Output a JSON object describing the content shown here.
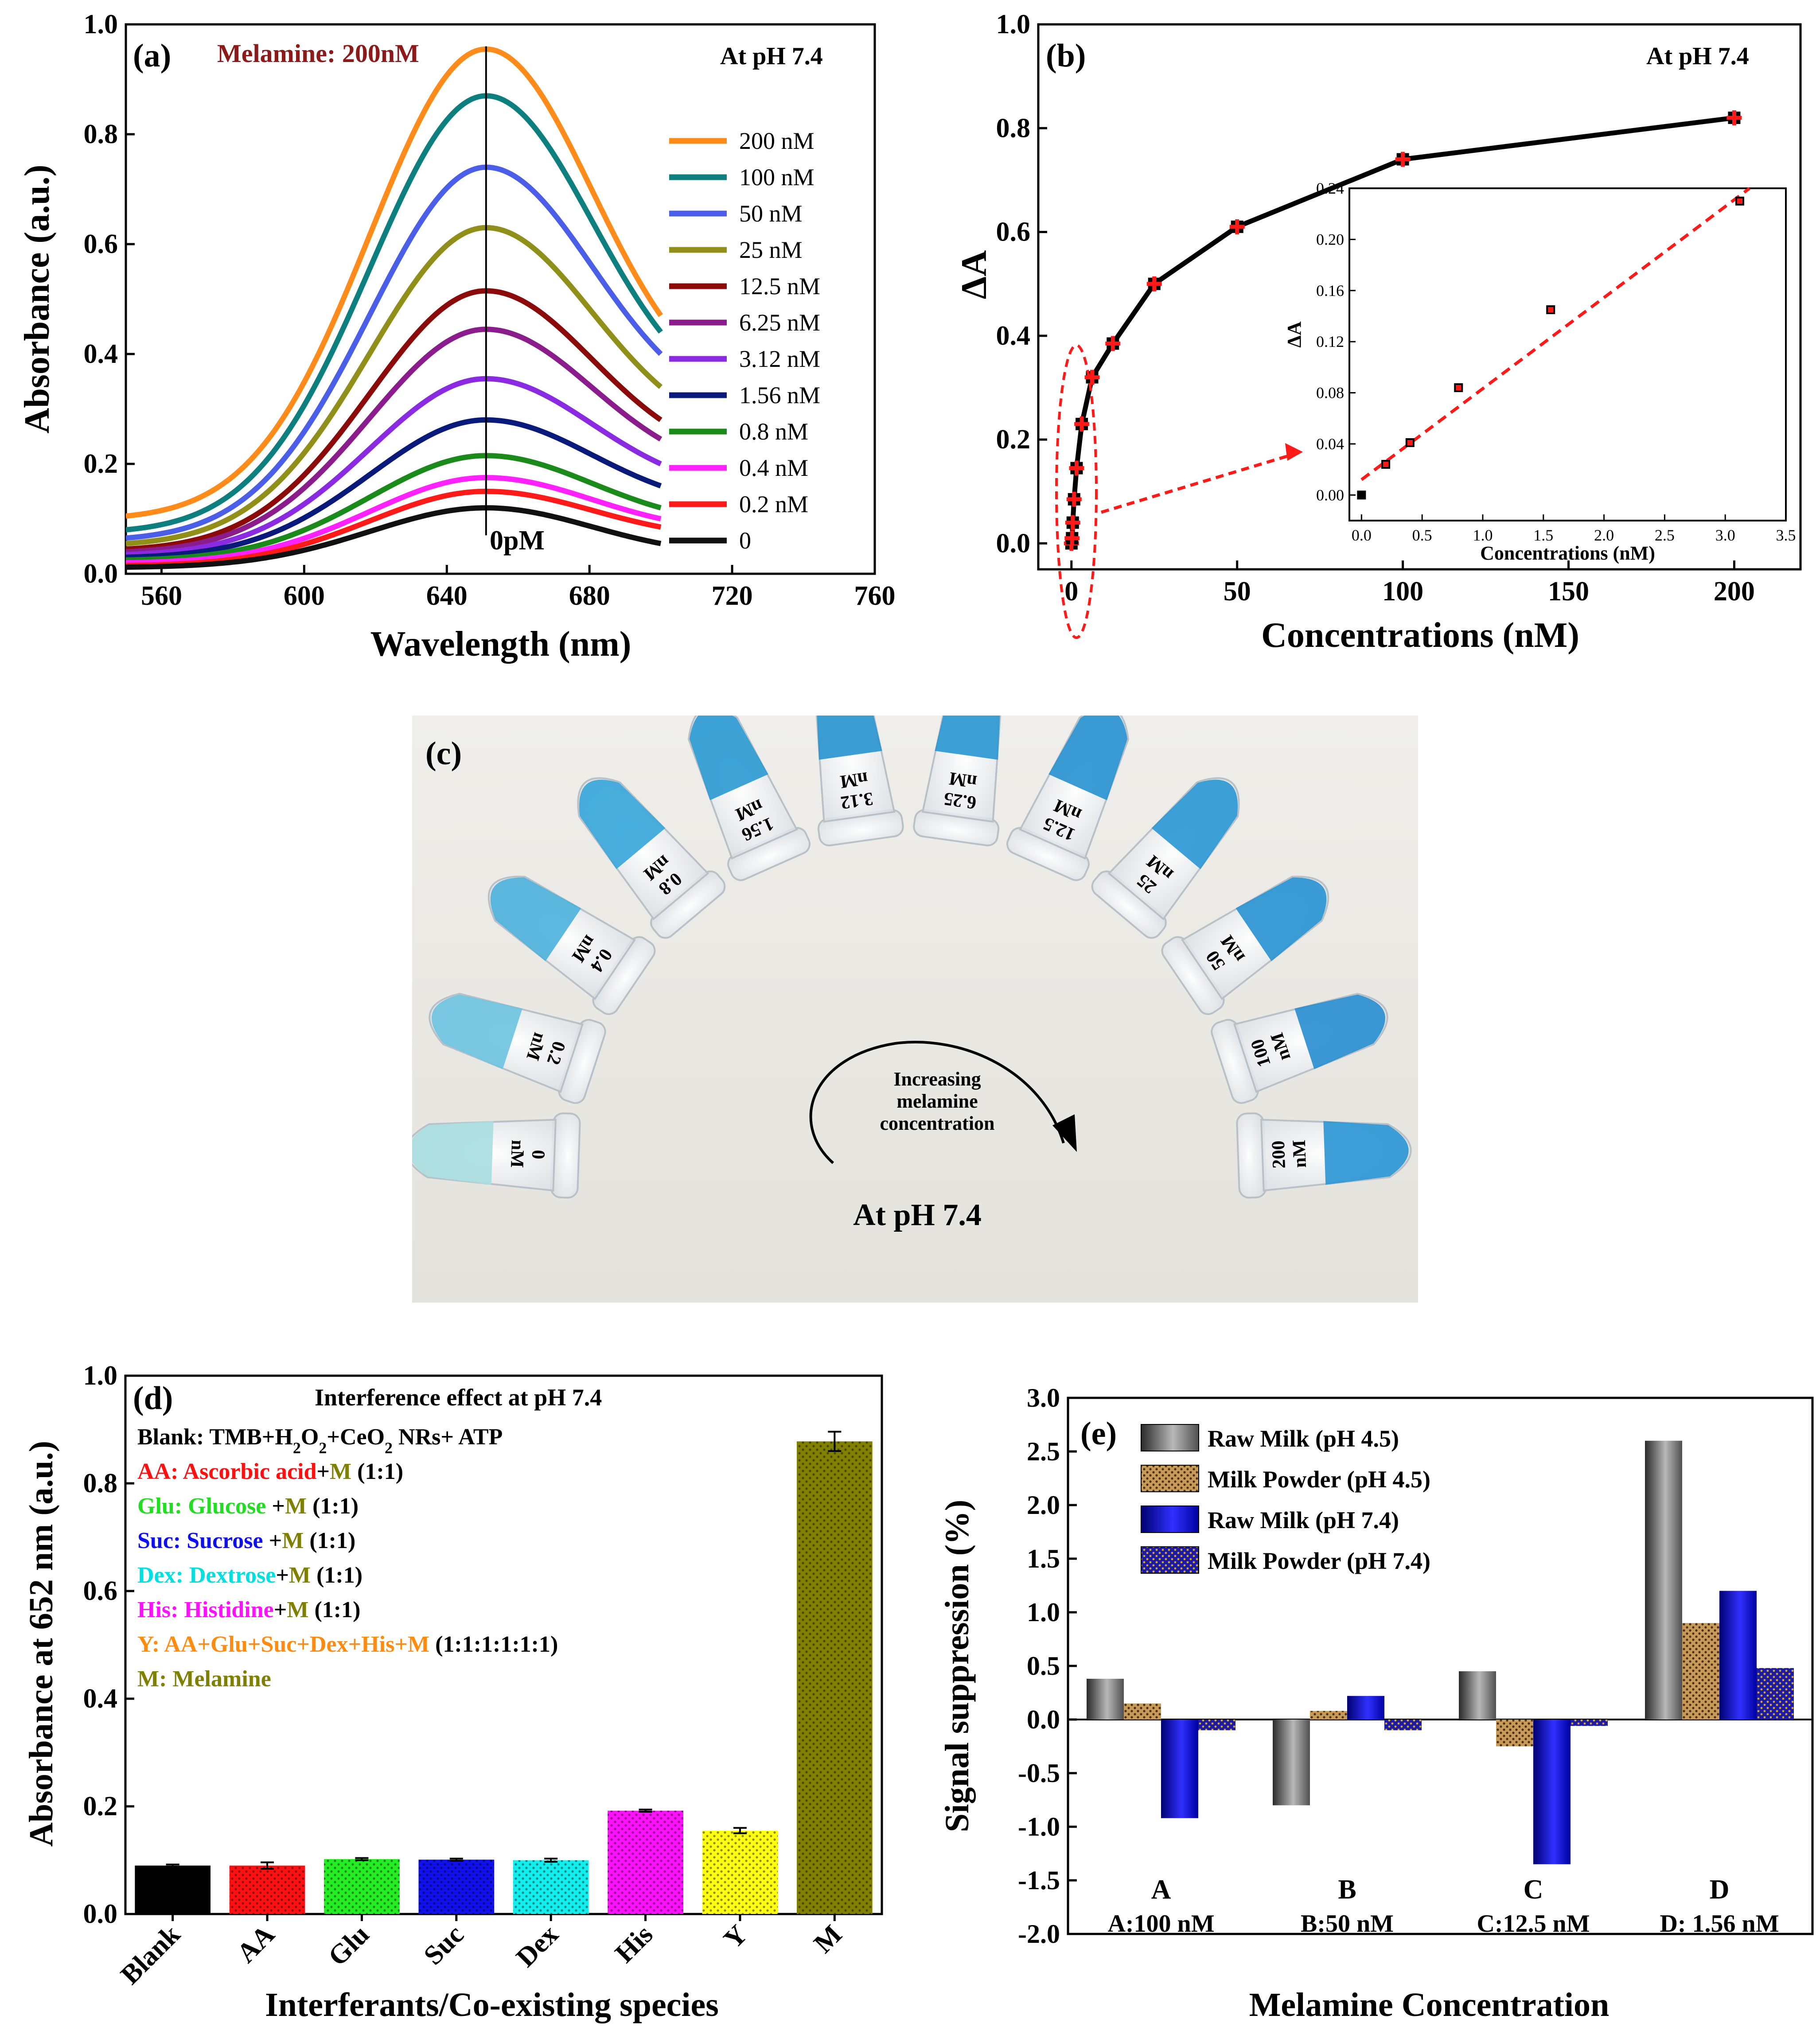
{
  "panel_a": {
    "panel_label": "(a)",
    "annotation": "Melamine: 200nM",
    "condition": "At pH 7.4",
    "zero_label": "0pM",
    "chart_data": {
      "type": "line",
      "title": "",
      "xlabel": "Wavelength (nm)",
      "ylabel": "Absorbance (a.u.)",
      "xlim": [
        550,
        760
      ],
      "ylim": [
        0.0,
        1.0
      ],
      "xticks": [
        "560",
        "600",
        "640",
        "680",
        "720",
        "760"
      ],
      "yticks": [
        "0.0",
        "0.2",
        "0.4",
        "0.6",
        "0.8",
        "1.0"
      ],
      "x_range": [
        550,
        700
      ],
      "peak_nm": 651,
      "series": [
        {
          "name": "200 nM",
          "color": "#ff8c1a",
          "peak": 0.955,
          "start": 0.105,
          "end": 0.47
        },
        {
          "name": "100 nM",
          "color": "#0d7f7f",
          "peak": 0.87,
          "start": 0.08,
          "end": 0.44
        },
        {
          "name": "50 nM",
          "color": "#4a5ee8",
          "peak": 0.74,
          "start": 0.065,
          "end": 0.4
        },
        {
          "name": "25 nM",
          "color": "#8f8f1a",
          "peak": 0.63,
          "start": 0.055,
          "end": 0.34
        },
        {
          "name": "12.5 nM",
          "color": "#8b0a0a",
          "peak": 0.515,
          "start": 0.045,
          "end": 0.28
        },
        {
          "name": "6.25 nM",
          "color": "#8b1c8b",
          "peak": 0.445,
          "start": 0.04,
          "end": 0.245
        },
        {
          "name": "3.12 nM",
          "color": "#8a2be2",
          "peak": 0.355,
          "start": 0.035,
          "end": 0.2
        },
        {
          "name": "1.56 nM",
          "color": "#0a1a7a",
          "peak": 0.28,
          "start": 0.03,
          "end": 0.16
        },
        {
          "name": "0.8 nM",
          "color": "#1a8a1a",
          "peak": 0.215,
          "start": 0.025,
          "end": 0.12
        },
        {
          "name": "0.4 nM",
          "color": "#ff22ff",
          "peak": 0.175,
          "start": 0.02,
          "end": 0.1
        },
        {
          "name": "0.2 nM",
          "color": "#ff1a1a",
          "peak": 0.15,
          "start": 0.015,
          "end": 0.085
        },
        {
          "name": "0",
          "color": "#111111",
          "peak": 0.12,
          "start": 0.012,
          "end": 0.055
        }
      ]
    }
  },
  "panel_b": {
    "panel_label": "(b)",
    "condition": "At pH 7.4",
    "chart_data": {
      "type": "line",
      "title": "",
      "xlabel": "Concentrations (nM)",
      "ylabel": "ΔA",
      "xlim": [
        -10,
        220
      ],
      "ylim": [
        -0.05,
        1.0
      ],
      "xticks": [
        "0",
        "50",
        "100",
        "150",
        "200"
      ],
      "yticks": [
        "0.0",
        "0.2",
        "0.4",
        "0.6",
        "0.8",
        "1.0"
      ],
      "x": [
        0,
        0.2,
        0.4,
        0.8,
        1.56,
        3.12,
        6.25,
        12.5,
        25,
        50,
        100,
        200
      ],
      "y": [
        0.0,
        0.01,
        0.04,
        0.085,
        0.145,
        0.23,
        0.32,
        0.385,
        0.5,
        0.61,
        0.74,
        0.82
      ]
    },
    "inset_chart_data": {
      "type": "scatter",
      "xlabel": "Concentrations (nM)",
      "ylabel": "ΔA",
      "xlim": [
        -0.1,
        3.5
      ],
      "ylim": [
        -0.02,
        0.24
      ],
      "xticks": [
        "0.0",
        "0.5",
        "1.0",
        "1.5",
        "2.0",
        "2.5",
        "3.0",
        "3.5"
      ],
      "yticks": [
        "0.00",
        "0.04",
        "0.08",
        "0.12",
        "0.16",
        "0.20",
        "0.24"
      ],
      "x": [
        0,
        0.2,
        0.4,
        0.8,
        1.56,
        3.12
      ],
      "y": [
        0.0,
        0.024,
        0.041,
        0.084,
        0.145,
        0.23
      ],
      "fit": {
        "x": [
          0,
          3.2
        ],
        "y": [
          0.012,
          0.24
        ]
      }
    }
  },
  "panel_c": {
    "panel_label": "(c)",
    "arrow_text": "Increasing melamine concentration",
    "arrow_text_lines": [
      "Increasing",
      "melamine",
      "concentration"
    ],
    "condition": "At pH 7.4",
    "tubes": [
      {
        "value": "0",
        "unit": "nM",
        "color": "#a9dde0"
      },
      {
        "value": "0.2",
        "unit": "nM",
        "color": "#6fc3df"
      },
      {
        "value": "0.4",
        "unit": "nM",
        "color": "#4fb2dc"
      },
      {
        "value": "0.8",
        "unit": "nM",
        "color": "#3aa7d9"
      },
      {
        "value": "1.56",
        "unit": "nM",
        "color": "#2f9bd2"
      },
      {
        "value": "3.12",
        "unit": "nM",
        "color": "#2a95cf"
      },
      {
        "value": "6.25",
        "unit": "nM",
        "color": "#2b97d1"
      },
      {
        "value": "12.5",
        "unit": "nM",
        "color": "#2a93d0"
      },
      {
        "value": "25",
        "unit": "nM",
        "color": "#2c98d3"
      },
      {
        "value": "50",
        "unit": "nM",
        "color": "#2a94d2"
      },
      {
        "value": "100",
        "unit": "nM",
        "color": "#2b8fd0"
      },
      {
        "value": "200",
        "unit": "nM",
        "color": "#2e96d4"
      }
    ]
  },
  "panel_d": {
    "panel_label": "(d)",
    "heading": "Interference effect at pH 7.4",
    "legend_lines": [
      {
        "segments": [
          {
            "text": "Blank: TMB+H",
            "color": "#000000"
          },
          {
            "text": "2",
            "color": "#000000",
            "sub": true
          },
          {
            "text": "O",
            "color": "#000000"
          },
          {
            "text": "2",
            "color": "#000000",
            "sub": true
          },
          {
            "text": "+CeO",
            "color": "#000000"
          },
          {
            "text": "2",
            "color": "#000000",
            "sub": true
          },
          {
            "text": " NRs+ ATP",
            "color": "#000000"
          }
        ]
      },
      {
        "segments": [
          {
            "text": "AA: Ascorbic acid",
            "color": "#ff1010"
          },
          {
            "text": "+",
            "color": "#000000"
          },
          {
            "text": "M",
            "color": "#808000"
          },
          {
            "text": " (1:1)",
            "color": "#000000"
          }
        ]
      },
      {
        "segments": [
          {
            "text": "Glu: Glucose ",
            "color": "#22dd22"
          },
          {
            "text": "+",
            "color": "#000000"
          },
          {
            "text": "M",
            "color": "#808000"
          },
          {
            "text": " (1:1)",
            "color": "#000000"
          }
        ]
      },
      {
        "segments": [
          {
            "text": "Suc: Sucrose ",
            "color": "#1010ee"
          },
          {
            "text": "+",
            "color": "#000000"
          },
          {
            "text": "M",
            "color": "#808000"
          },
          {
            "text": " (1:1)",
            "color": "#000000"
          }
        ]
      },
      {
        "segments": [
          {
            "text": "Dex: Dextrose",
            "color": "#00e0e0"
          },
          {
            "text": "+",
            "color": "#000000"
          },
          {
            "text": "M",
            "color": "#808000"
          },
          {
            "text": " (1:1)",
            "color": "#000000"
          }
        ]
      },
      {
        "segments": [
          {
            "text": "His: Histidine",
            "color": "#ff10ff"
          },
          {
            "text": "+",
            "color": "#000000"
          },
          {
            "text": "M",
            "color": "#808000"
          },
          {
            "text": " (1:1)",
            "color": "#000000"
          }
        ]
      },
      {
        "segments": [
          {
            "text": "Y: AA+Glu+Suc+Dex+His+M",
            "color": "#ff8c10"
          },
          {
            "text": " (1:1:1:1:1:1)",
            "color": "#000000"
          }
        ]
      },
      {
        "segments": [
          {
            "text": "M: Melamine",
            "color": "#808000"
          }
        ]
      }
    ],
    "chart_data": {
      "type": "bar",
      "title": "",
      "xlabel": "Interferants/Co-existing species",
      "ylabel": "Absorbance at 652 nm (a.u.)",
      "ylim": [
        0.0,
        1.0
      ],
      "yticks": [
        "0.0",
        "0.2",
        "0.4",
        "0.6",
        "0.8",
        "1.0"
      ],
      "categories": [
        "Blank",
        "AA",
        "Glu",
        "Suc",
        "Dex",
        "His",
        "Y",
        "M"
      ],
      "values": [
        0.09,
        0.09,
        0.102,
        0.101,
        0.1,
        0.192,
        0.155,
        0.878
      ],
      "errors": [
        0.002,
        0.006,
        0.002,
        0.002,
        0.003,
        0.002,
        0.005,
        0.018
      ],
      "colors": [
        "#000000",
        "#ff1010",
        "#22ee22",
        "#1010ee",
        "#10eeee",
        "#ff10ff",
        "#ffff10",
        "#808000"
      ]
    }
  },
  "panel_e": {
    "panel_label": "(e)",
    "group_letters": [
      "A",
      "B",
      "C",
      "D"
    ],
    "group_captions": [
      "A:100 nM",
      "B:50 nM",
      "C:12.5 nM",
      "D: 1.56 nM"
    ],
    "chart_data": {
      "type": "bar",
      "title": "",
      "xlabel": "Melamine Concentration",
      "ylabel": "Signal suppression (%)",
      "ylim": [
        -2.0,
        3.0
      ],
      "yticks": [
        "-2.0",
        "-1.5",
        "-1.0",
        "-0.5",
        "0.0",
        "0.5",
        "1.0",
        "1.5",
        "2.0",
        "2.5",
        "3.0"
      ],
      "categories": [
        "A",
        "B",
        "C",
        "D"
      ],
      "series": [
        {
          "name": "Raw Milk (pH 4.5)",
          "color": "#666666",
          "values": [
            0.38,
            -0.8,
            0.45,
            2.6
          ]
        },
        {
          "name": "Milk Powder (pH 4.5)",
          "color": "#b8864b",
          "values": [
            0.15,
            0.08,
            -0.25,
            0.9
          ]
        },
        {
          "name": "Raw Milk (pH 7.4)",
          "color": "#1010e0",
          "values": [
            -0.92,
            0.22,
            -1.35,
            1.2
          ]
        },
        {
          "name": "Milk Powder (pH 7.4)",
          "color": "#2a2aaa",
          "values": [
            -0.1,
            -0.1,
            -0.06,
            0.48
          ]
        }
      ]
    }
  }
}
